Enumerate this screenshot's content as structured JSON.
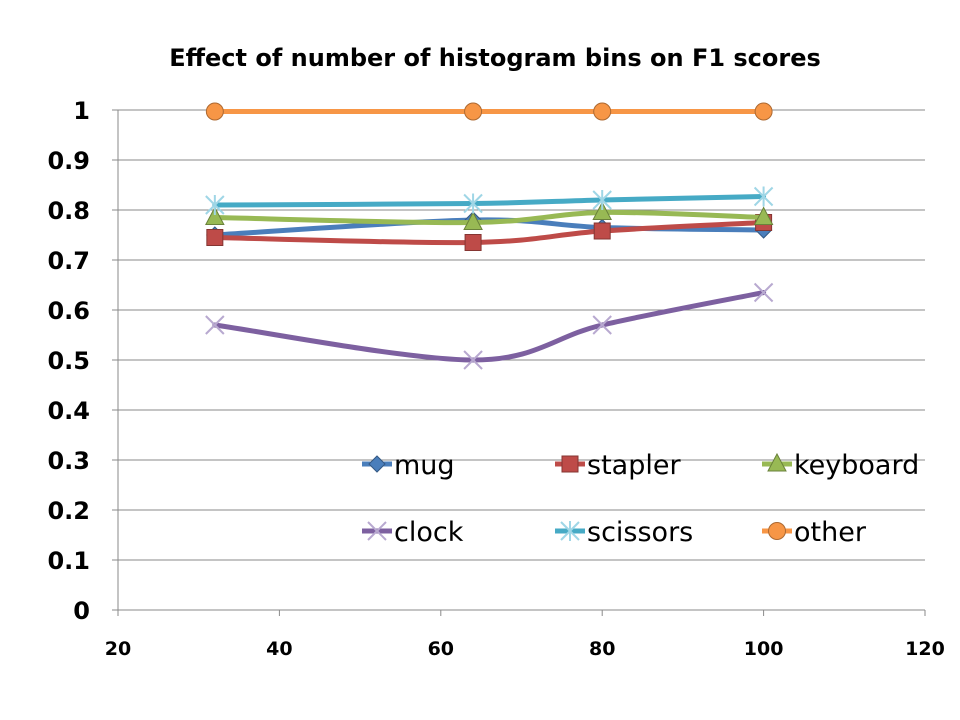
{
  "chart_data": {
    "type": "line",
    "title": "Effect of number of histogram bins on F1 scores",
    "xlabel": "",
    "ylabel": "",
    "xlim": [
      20,
      120
    ],
    "ylim": [
      0,
      1
    ],
    "xticks": [
      20,
      40,
      60,
      80,
      100,
      120
    ],
    "yticks": [
      0,
      0.1,
      0.2,
      0.3,
      0.4,
      0.5,
      0.6,
      0.7,
      0.8,
      0.9,
      1
    ],
    "ytick_labels": [
      "0",
      "0.1",
      "0.2",
      "0.3",
      "0.4",
      "0.5",
      "0.6",
      "0.7",
      "0.8",
      "0.9",
      "1"
    ],
    "grid": "horizontal",
    "legend_position": "lower-right",
    "x": [
      32,
      64,
      80,
      100
    ],
    "series": [
      {
        "name": "mug",
        "values": [
          0.75,
          0.78,
          0.765,
          0.76
        ],
        "color": "#4a7ebb",
        "marker": "diamond"
      },
      {
        "name": "stapler",
        "values": [
          0.745,
          0.735,
          0.758,
          0.775
        ],
        "color": "#be4b48",
        "marker": "square"
      },
      {
        "name": "keyboard",
        "values": [
          0.785,
          0.775,
          0.795,
          0.785
        ],
        "color": "#98b954",
        "marker": "triangle"
      },
      {
        "name": "clock",
        "values": [
          0.57,
          0.5,
          0.57,
          0.635
        ],
        "color": "#7d60a0",
        "marker": "x"
      },
      {
        "name": "scissors",
        "values": [
          0.81,
          0.813,
          0.82,
          0.827
        ],
        "color": "#46aac5",
        "marker": "star"
      },
      {
        "name": "other",
        "values": [
          0.997,
          0.997,
          0.997,
          0.997
        ],
        "color": "#f79646",
        "marker": "circle"
      }
    ]
  }
}
